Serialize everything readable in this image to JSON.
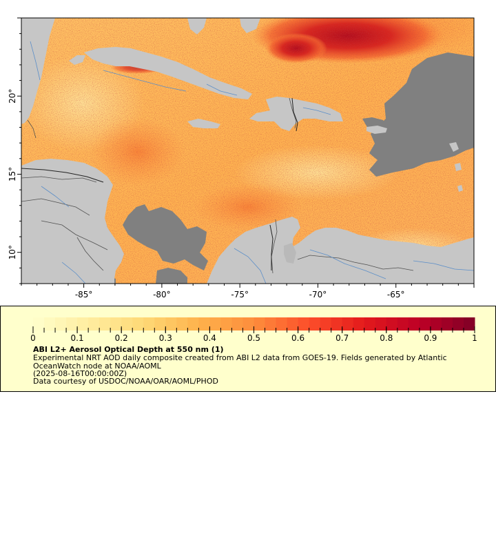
{
  "map": {
    "type": "raster-map",
    "variable": "Aerosol Optical Depth at 550 nm",
    "x_ticks": [
      "-85°",
      "-80°",
      "-75°",
      "-70°",
      "-65°"
    ],
    "x_tick_values": [
      -85,
      -80,
      -75,
      -70,
      -65
    ],
    "y_ticks": [
      "20°",
      "15°",
      "10°"
    ],
    "y_tick_values": [
      20,
      15,
      10
    ],
    "lon_range": [
      -89,
      -60
    ],
    "lat_range": [
      8,
      25
    ],
    "colors": {
      "land": "#c6c6c6",
      "no_data": "#808080",
      "rivers": "#5b8ec8",
      "borders": "#505050"
    }
  },
  "legend": {
    "title": "ABI L2+ Aerosol Optical Depth at 550 nm (1)",
    "description": "Experimental NRT AOD daily composite created from ABI L2 data from GOES-19. Fields generated by Atlantic OceanWatch node at NOAA/AOML",
    "timestamp": "(2025-08-16T00:00:00Z)",
    "credit": "Data courtesy of USDOC/NOAA/OAR/AOML/PHOD",
    "colorbar": {
      "min": 0,
      "max": 1,
      "tick_labels": [
        "0",
        "0.1",
        "0.2",
        "0.3",
        "0.4",
        "0.5",
        "0.6",
        "0.7",
        "0.8",
        "0.9",
        "1"
      ],
      "tick_values": [
        0,
        0.1,
        0.2,
        0.3,
        0.4,
        0.5,
        0.6,
        0.7,
        0.8,
        0.9,
        1
      ],
      "palette": [
        "#ffffcc",
        "#ffeda0",
        "#fed976",
        "#feb24c",
        "#fd8d3c",
        "#fc4e2a",
        "#e31a1c",
        "#bd0026",
        "#800026"
      ]
    }
  }
}
